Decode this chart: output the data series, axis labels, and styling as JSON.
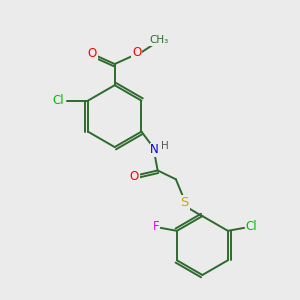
{
  "bg_color": "#ebebeb",
  "bond_color": "#2d6a2d",
  "atom_colors": {
    "Cl": "#00bb00",
    "O": "#ff0000",
    "N": "#0000ee",
    "H": "#555555",
    "S": "#ccaa00",
    "F": "#ee00ee",
    "C": "#2d6a2d"
  },
  "figsize": [
    3.0,
    3.0
  ],
  "dpi": 100,
  "lw": 1.4
}
